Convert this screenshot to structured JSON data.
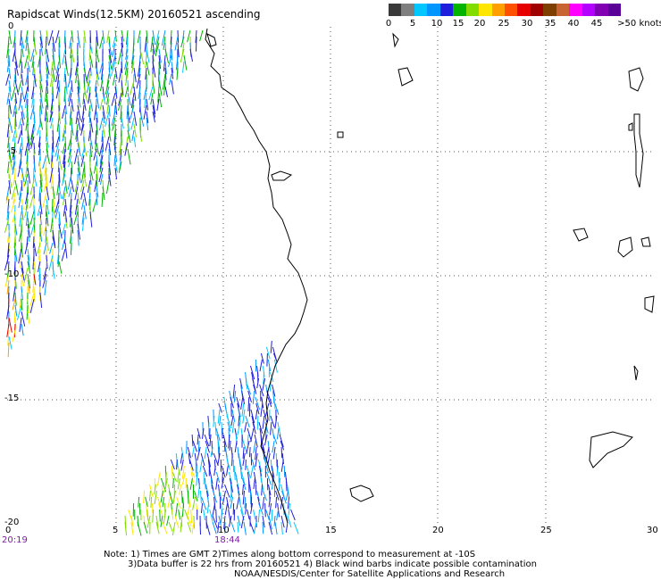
{
  "title": "Rapidscat Winds(12.5KM) 20160521 ascending",
  "colorbar": {
    "colors": [
      "#3a3a3a",
      "#7f7f7f",
      "#00c8ff",
      "#0096ff",
      "#1e1edc",
      "#00b400",
      "#82dc00",
      "#ffe600",
      "#ffa000",
      "#ff5000",
      "#e60000",
      "#a00000",
      "#7f3f00",
      "#c86432",
      "#ff00ff",
      "#b400ff",
      "#8200b4",
      "#5a0096"
    ],
    "labels": [
      "0",
      "5",
      "10",
      "15",
      "20",
      "25",
      "30",
      "35",
      "40",
      "45",
      ">50 knots"
    ]
  },
  "axes": {
    "y_ticks": [
      "0",
      "-5",
      "-10",
      "-15",
      "-20"
    ],
    "x_ticks": [
      "0",
      "5",
      "10",
      "15",
      "20",
      "25",
      "30"
    ]
  },
  "times": [
    "20:19",
    "18:44"
  ],
  "notes": [
    "Note: 1) Times are GMT 2)Times along bottom correspond to measurement at -10S",
    "3)Data buffer is 22 hrs from 20160521 4) Black wind barbs indicate possible contamination",
    "NOAA/NESDIS/Center for Satellite Applications and Research"
  ]
}
